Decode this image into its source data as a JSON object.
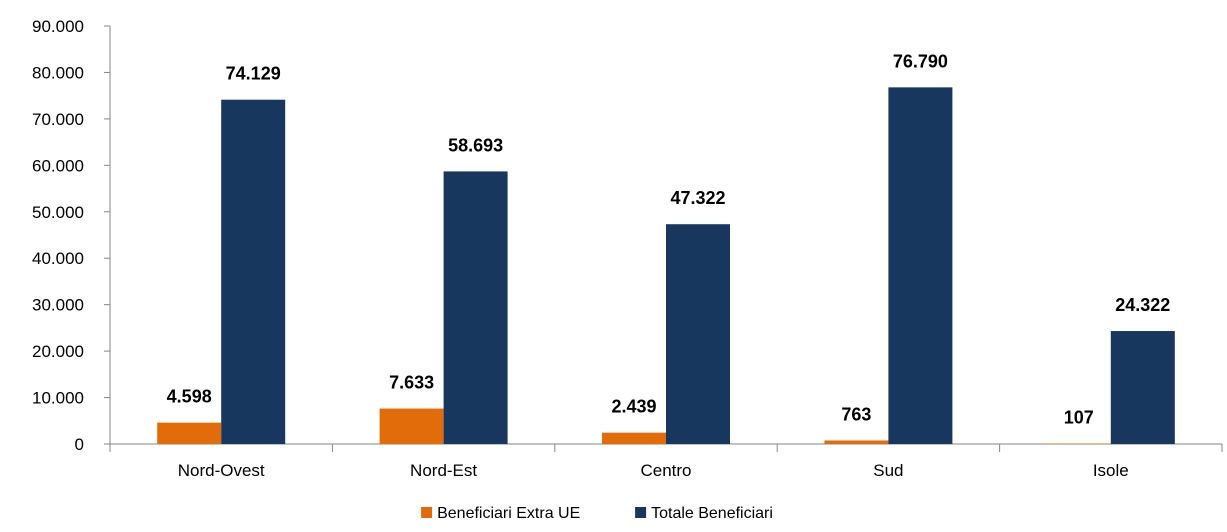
{
  "chart_data": {
    "type": "bar",
    "title": "",
    "xlabel": "",
    "ylabel": "",
    "categories": [
      "Nord-Ovest",
      "Nord-Est",
      "Centro",
      "Sud",
      "Isole"
    ],
    "series": [
      {
        "name": "Beneficiari Extra UE",
        "color": "#E36C0A",
        "values": [
          4598,
          7633,
          2439,
          763,
          107
        ],
        "labels": [
          "4.598",
          "7.633",
          "2.439",
          "763",
          "107"
        ]
      },
      {
        "name": "Totale Beneficiari",
        "color": "#17375E",
        "values": [
          74129,
          58693,
          47322,
          76790,
          24322
        ],
        "labels": [
          "74.129",
          "58.693",
          "47.322",
          "76.790",
          "24.322"
        ]
      }
    ],
    "ylim": [
      0,
      90000
    ],
    "yticks": [
      0,
      10000,
      20000,
      30000,
      40000,
      50000,
      60000,
      70000,
      80000,
      90000
    ],
    "ytick_labels": [
      "0",
      "10.000",
      "20.000",
      "30.000",
      "40.000",
      "50.000",
      "60.000",
      "70.000",
      "80.000",
      "90.000"
    ],
    "grid": false,
    "legend_position": "bottom-center"
  }
}
